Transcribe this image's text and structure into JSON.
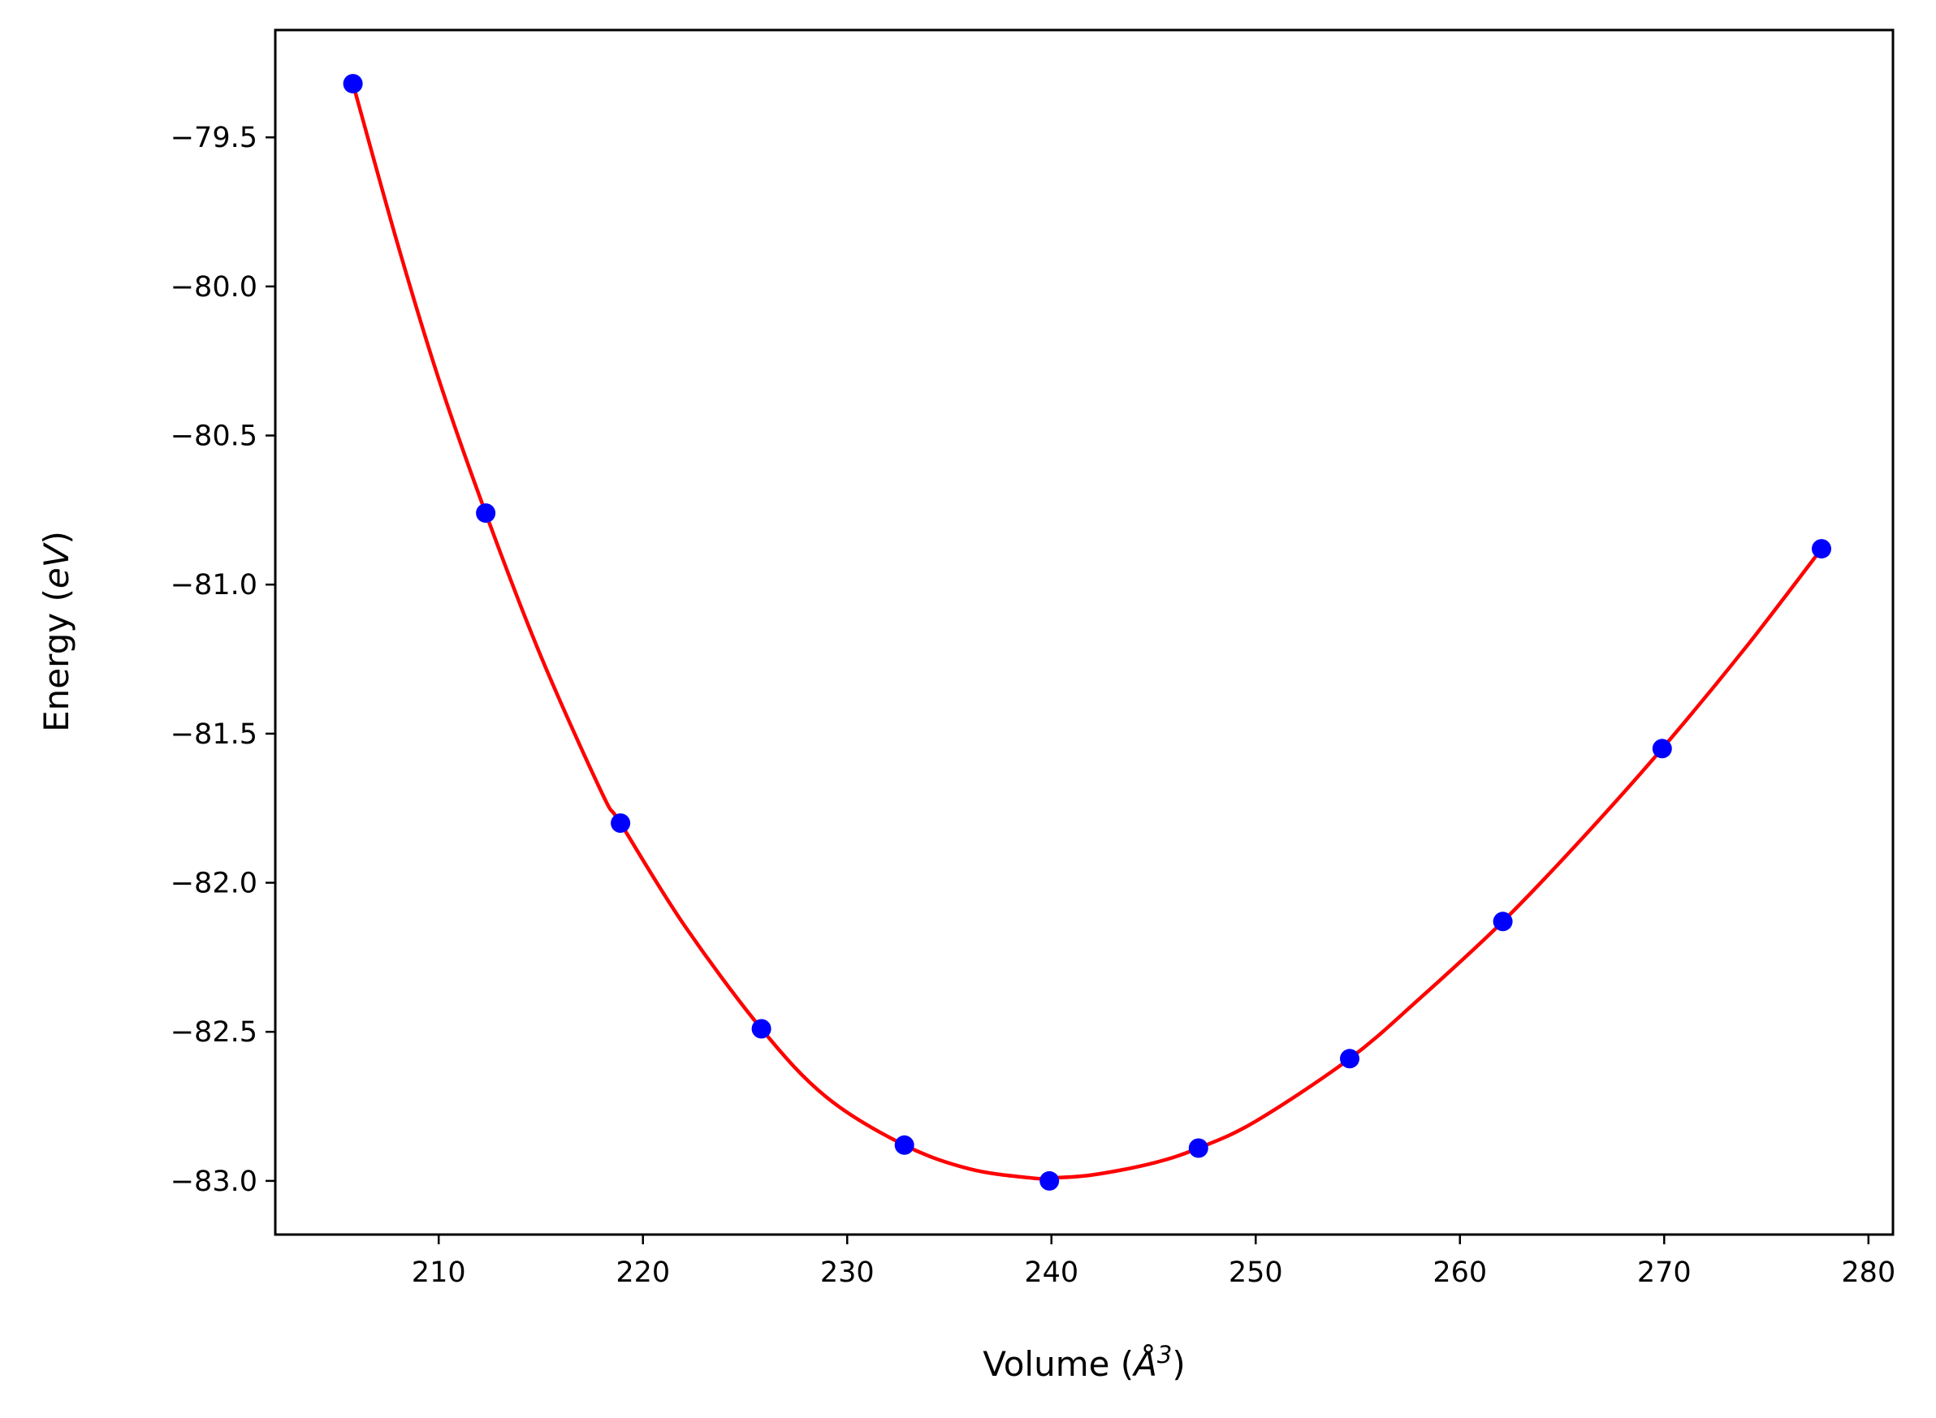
{
  "chart_data": {
    "type": "scatter",
    "title": "",
    "xlabel": {
      "prefix": "Volume (",
      "symbol": "Å",
      "power": "3",
      "suffix": ")"
    },
    "ylabel": {
      "prefix": "Energy (",
      "unit": "eV",
      "suffix": ")"
    },
    "xlim": [
      202,
      281.2
    ],
    "ylim": [
      -83.18,
      -79.14
    ],
    "xticks": [
      210,
      220,
      230,
      240,
      250,
      260,
      270,
      280
    ],
    "yticks": [
      -79.5,
      -80.0,
      -80.5,
      -81.0,
      -81.5,
      -82.0,
      -82.5,
      -83.0
    ],
    "xtick_labels": [
      "210",
      "220",
      "230",
      "240",
      "250",
      "260",
      "270",
      "280"
    ],
    "ytick_labels": [
      "−79.5",
      "−80.0",
      "−80.5",
      "−81.0",
      "−81.5",
      "−82.0",
      "−82.5",
      "−83.0"
    ],
    "grid": false,
    "legend": "none",
    "series": [
      {
        "kind": "points",
        "color": "#0000ff",
        "x": [
          205.8,
          212.3,
          218.9,
          225.8,
          232.8,
          239.9,
          247.2,
          254.6,
          262.1,
          269.9,
          277.7
        ],
        "y": [
          -79.32,
          -80.76,
          -81.8,
          -82.49,
          -82.88,
          -83.0,
          -82.89,
          -82.59,
          -82.13,
          -81.55,
          -80.88
        ]
      },
      {
        "kind": "fit-line",
        "color": "#ff0000",
        "x": [
          205.8,
          208.0,
          210.0,
          212.3,
          215.0,
          218.0,
          218.9,
          222.0,
          225.8,
          229.0,
          232.8,
          236.0,
          239.0,
          239.9,
          242.0,
          245.0,
          247.2,
          250.0,
          254.6,
          258.0,
          262.1,
          266.0,
          269.9,
          274.0,
          277.7
        ],
        "y": [
          -79.32,
          -79.86,
          -80.31,
          -80.76,
          -81.24,
          -81.7,
          -81.8,
          -82.14,
          -82.49,
          -82.72,
          -82.88,
          -82.96,
          -82.99,
          -82.99,
          -82.98,
          -82.94,
          -82.89,
          -82.8,
          -82.59,
          -82.39,
          -82.13,
          -81.85,
          -81.55,
          -81.21,
          -80.88
        ]
      }
    ]
  }
}
